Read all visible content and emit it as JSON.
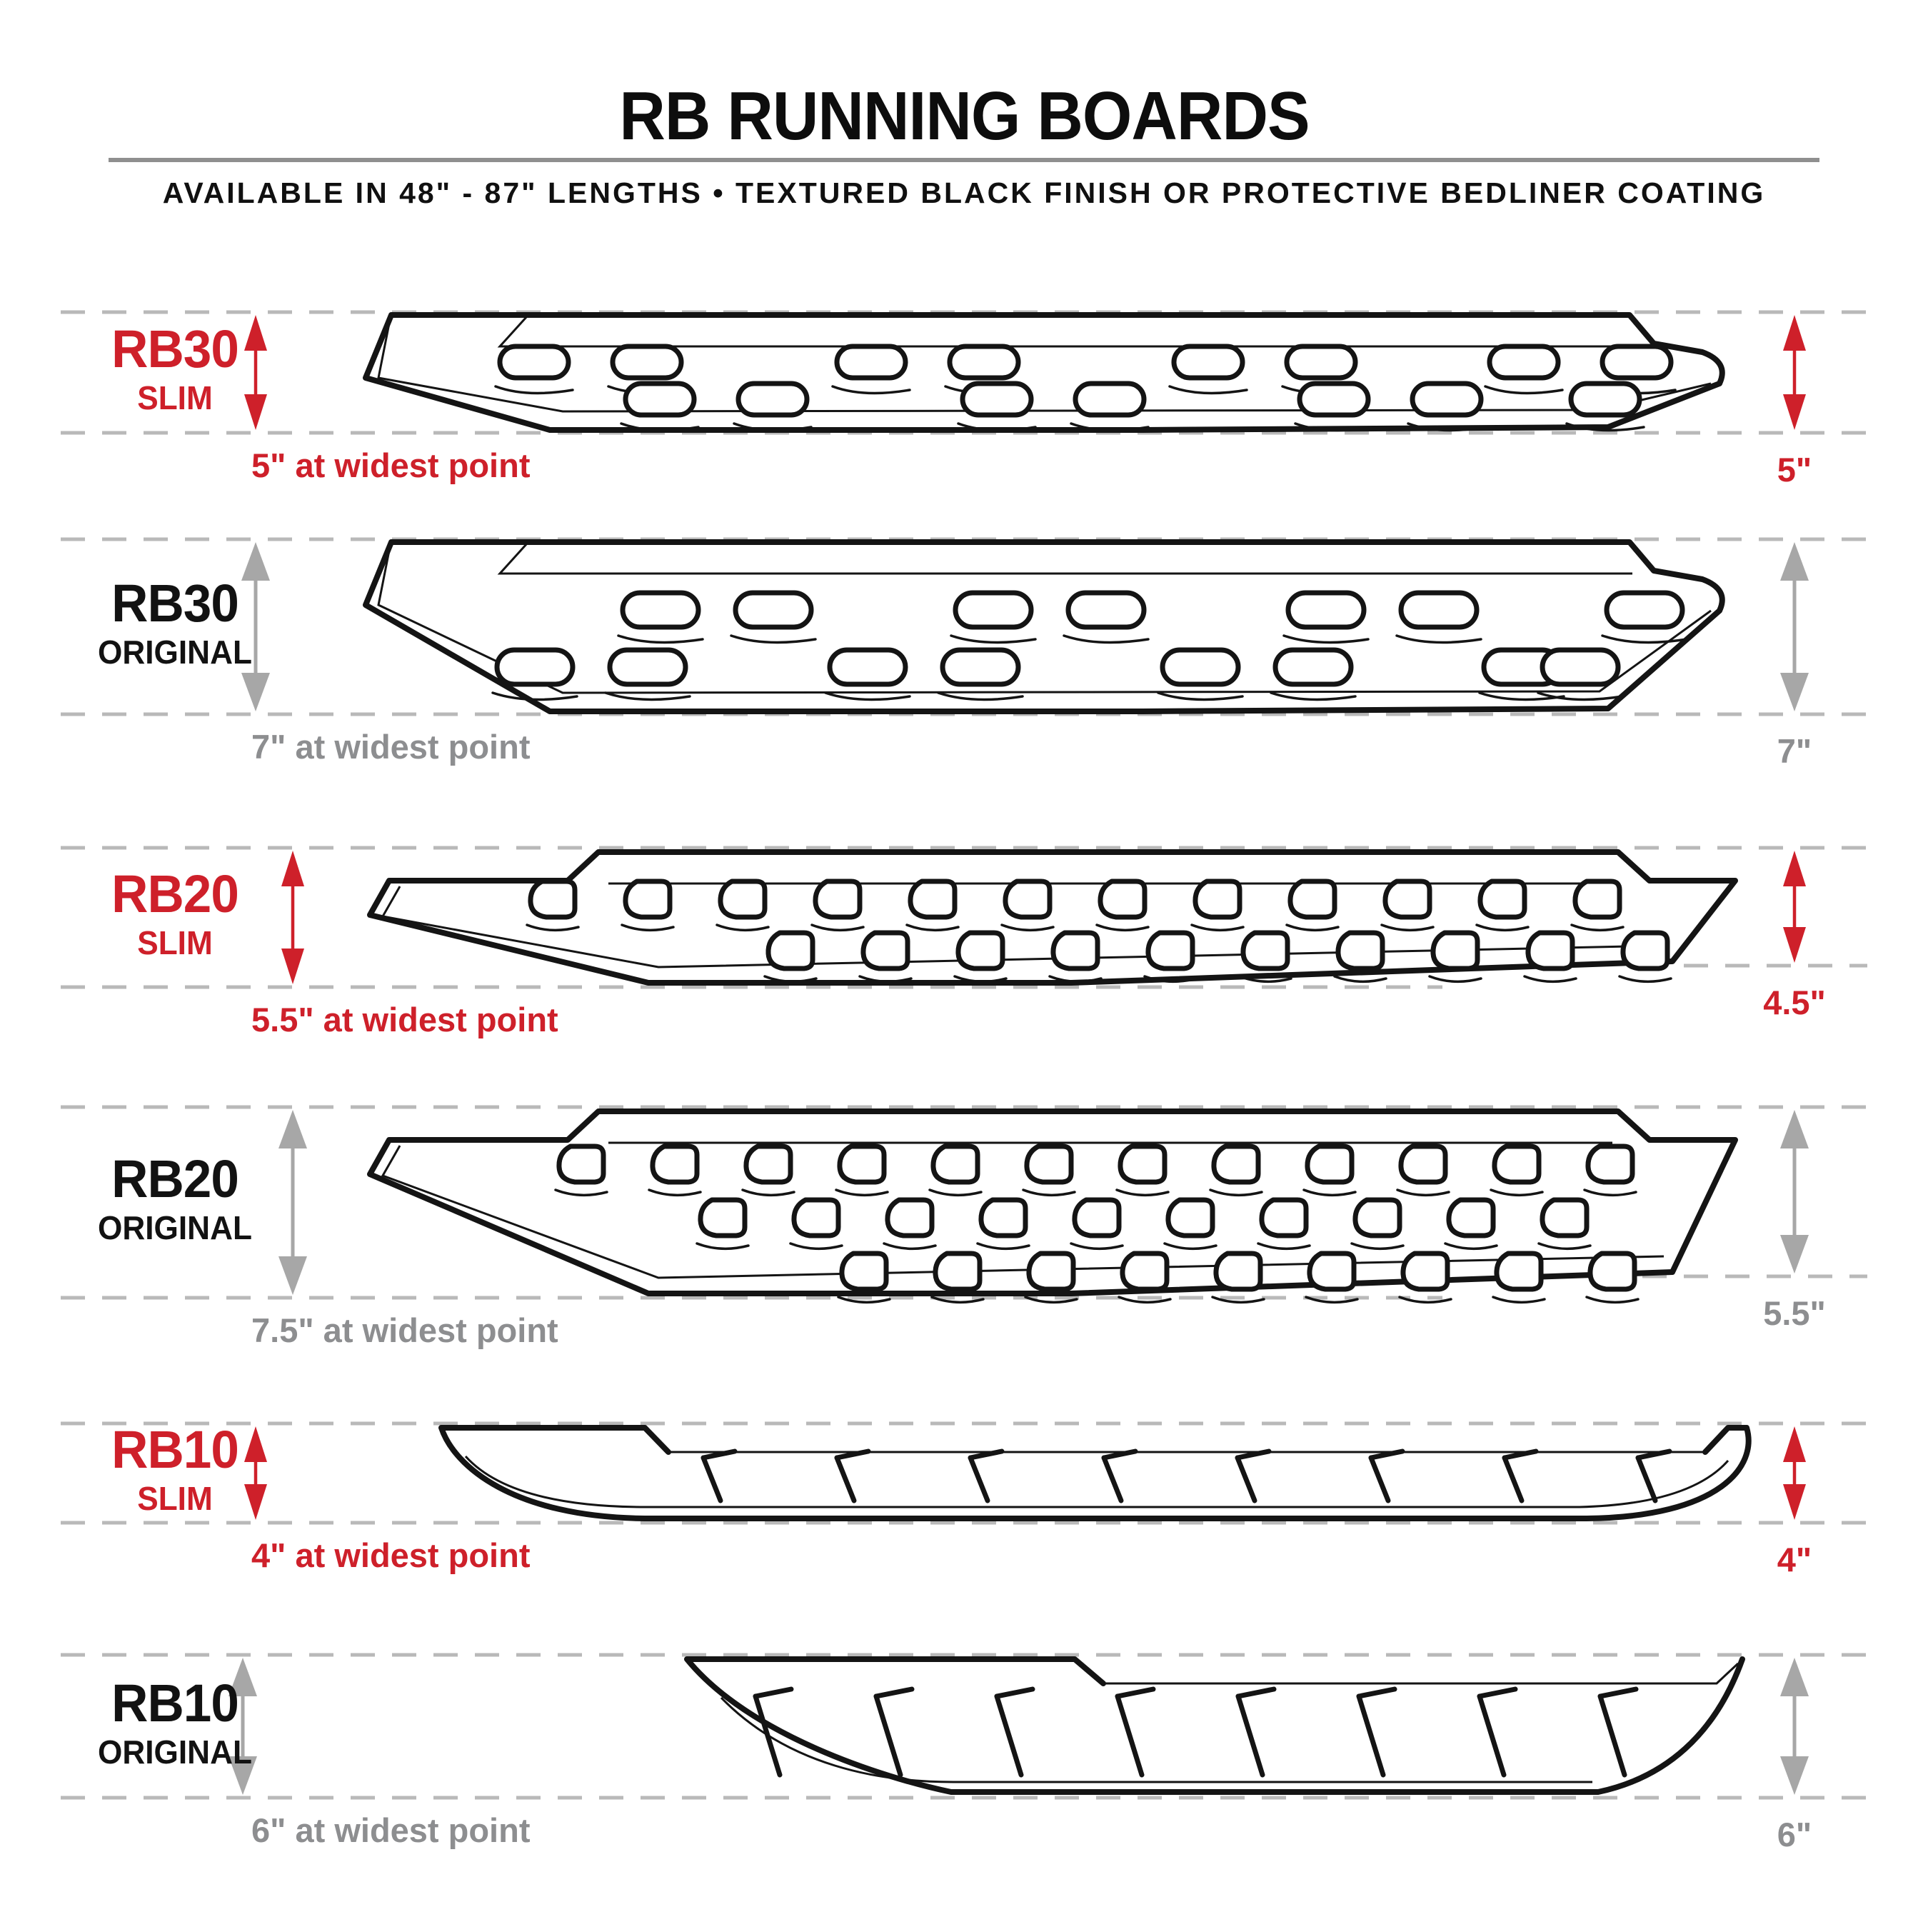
{
  "header": {
    "title": "RB RUNNING BOARDS",
    "subtitle": "AVAILABLE IN 48\" - 87\" LENGTHS  •  TEXTURED BLACK FINISH OR PROTECTIVE BEDLINER COATING"
  },
  "colors": {
    "red": "#ce202a",
    "arrow_gray": "#a7a7a7",
    "measure_gray": "#8d8e90",
    "dash_gray": "#b9b9b9",
    "line_black": "#141414",
    "divider_gray": "#8f8f8f"
  },
  "rows": [
    {
      "id": "rb30-slim",
      "model": "RB30",
      "variant": "SLIM",
      "style": "slim",
      "left_measure": "5\" at widest point",
      "right_measure": "5\""
    },
    {
      "id": "rb30-original",
      "model": "RB30",
      "variant": "ORIGINAL",
      "style": "original",
      "left_measure": "7\" at widest point",
      "right_measure": "7\""
    },
    {
      "id": "rb20-slim",
      "model": "RB20",
      "variant": "SLIM",
      "style": "slim",
      "left_measure": "5.5\" at widest point",
      "right_measure": "4.5\""
    },
    {
      "id": "rb20-original",
      "model": "RB20",
      "variant": "ORIGINAL",
      "style": "original",
      "left_measure": "7.5\" at widest point",
      "right_measure": "5.5\""
    },
    {
      "id": "rb10-slim",
      "model": "RB10",
      "variant": "SLIM",
      "style": "slim",
      "left_measure": "4\" at widest point",
      "right_measure": "4\""
    },
    {
      "id": "rb10-original",
      "model": "RB10",
      "variant": "ORIGINAL",
      "style": "original",
      "left_measure": "6\" at widest point",
      "right_measure": "6\""
    }
  ]
}
